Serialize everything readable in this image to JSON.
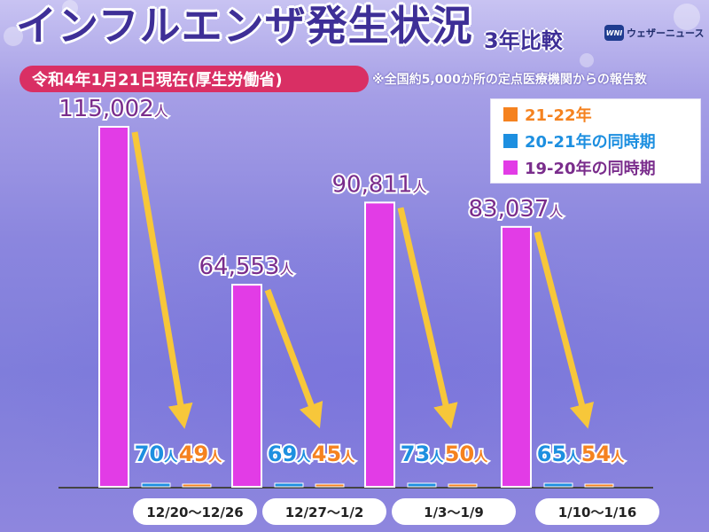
{
  "title": "インフルエンザ発生状況",
  "subtitle": "3年比較",
  "logo_text": "ウェザーニュース",
  "logo_mark": "WNI",
  "date_note": "令和4年1月21日現在(厚生労働省)",
  "source_note": "※全国約5,000か所の定点医療機関からの報告数",
  "colors": {
    "s21_22": "#f5821f",
    "s20_21": "#1d8fe0",
    "s19_20": "#e23ce6",
    "value_purple": "#7a2d8c",
    "arrow": "#f7c73a"
  },
  "chart_data": {
    "type": "bar",
    "categories": [
      "12/20〜12/26",
      "12/27〜1/2",
      "1/3〜1/9",
      "1/10〜1/16"
    ],
    "series": [
      {
        "name": "19-20年の同時期",
        "values": [
          115002,
          64553,
          90811,
          83037
        ],
        "labels": [
          "115,002",
          "64,553",
          "90,811",
          "83,037"
        ],
        "color": "#e23ce6"
      },
      {
        "name": "20-21年の同時期",
        "values": [
          70,
          69,
          73,
          65
        ],
        "labels": [
          "70",
          "69",
          "73",
          "65"
        ],
        "color": "#1d8fe0"
      },
      {
        "name": "21-22年",
        "values": [
          49,
          45,
          50,
          54
        ],
        "labels": [
          "49",
          "45",
          "50",
          "54"
        ],
        "color": "#f5821f"
      }
    ],
    "unit": "人",
    "legend": [
      "21-22年",
      "20-21年の同時期",
      "19-20年の同時期"
    ],
    "legend_position": "top-right",
    "ylim": [
      0,
      115002
    ],
    "grid": false
  }
}
